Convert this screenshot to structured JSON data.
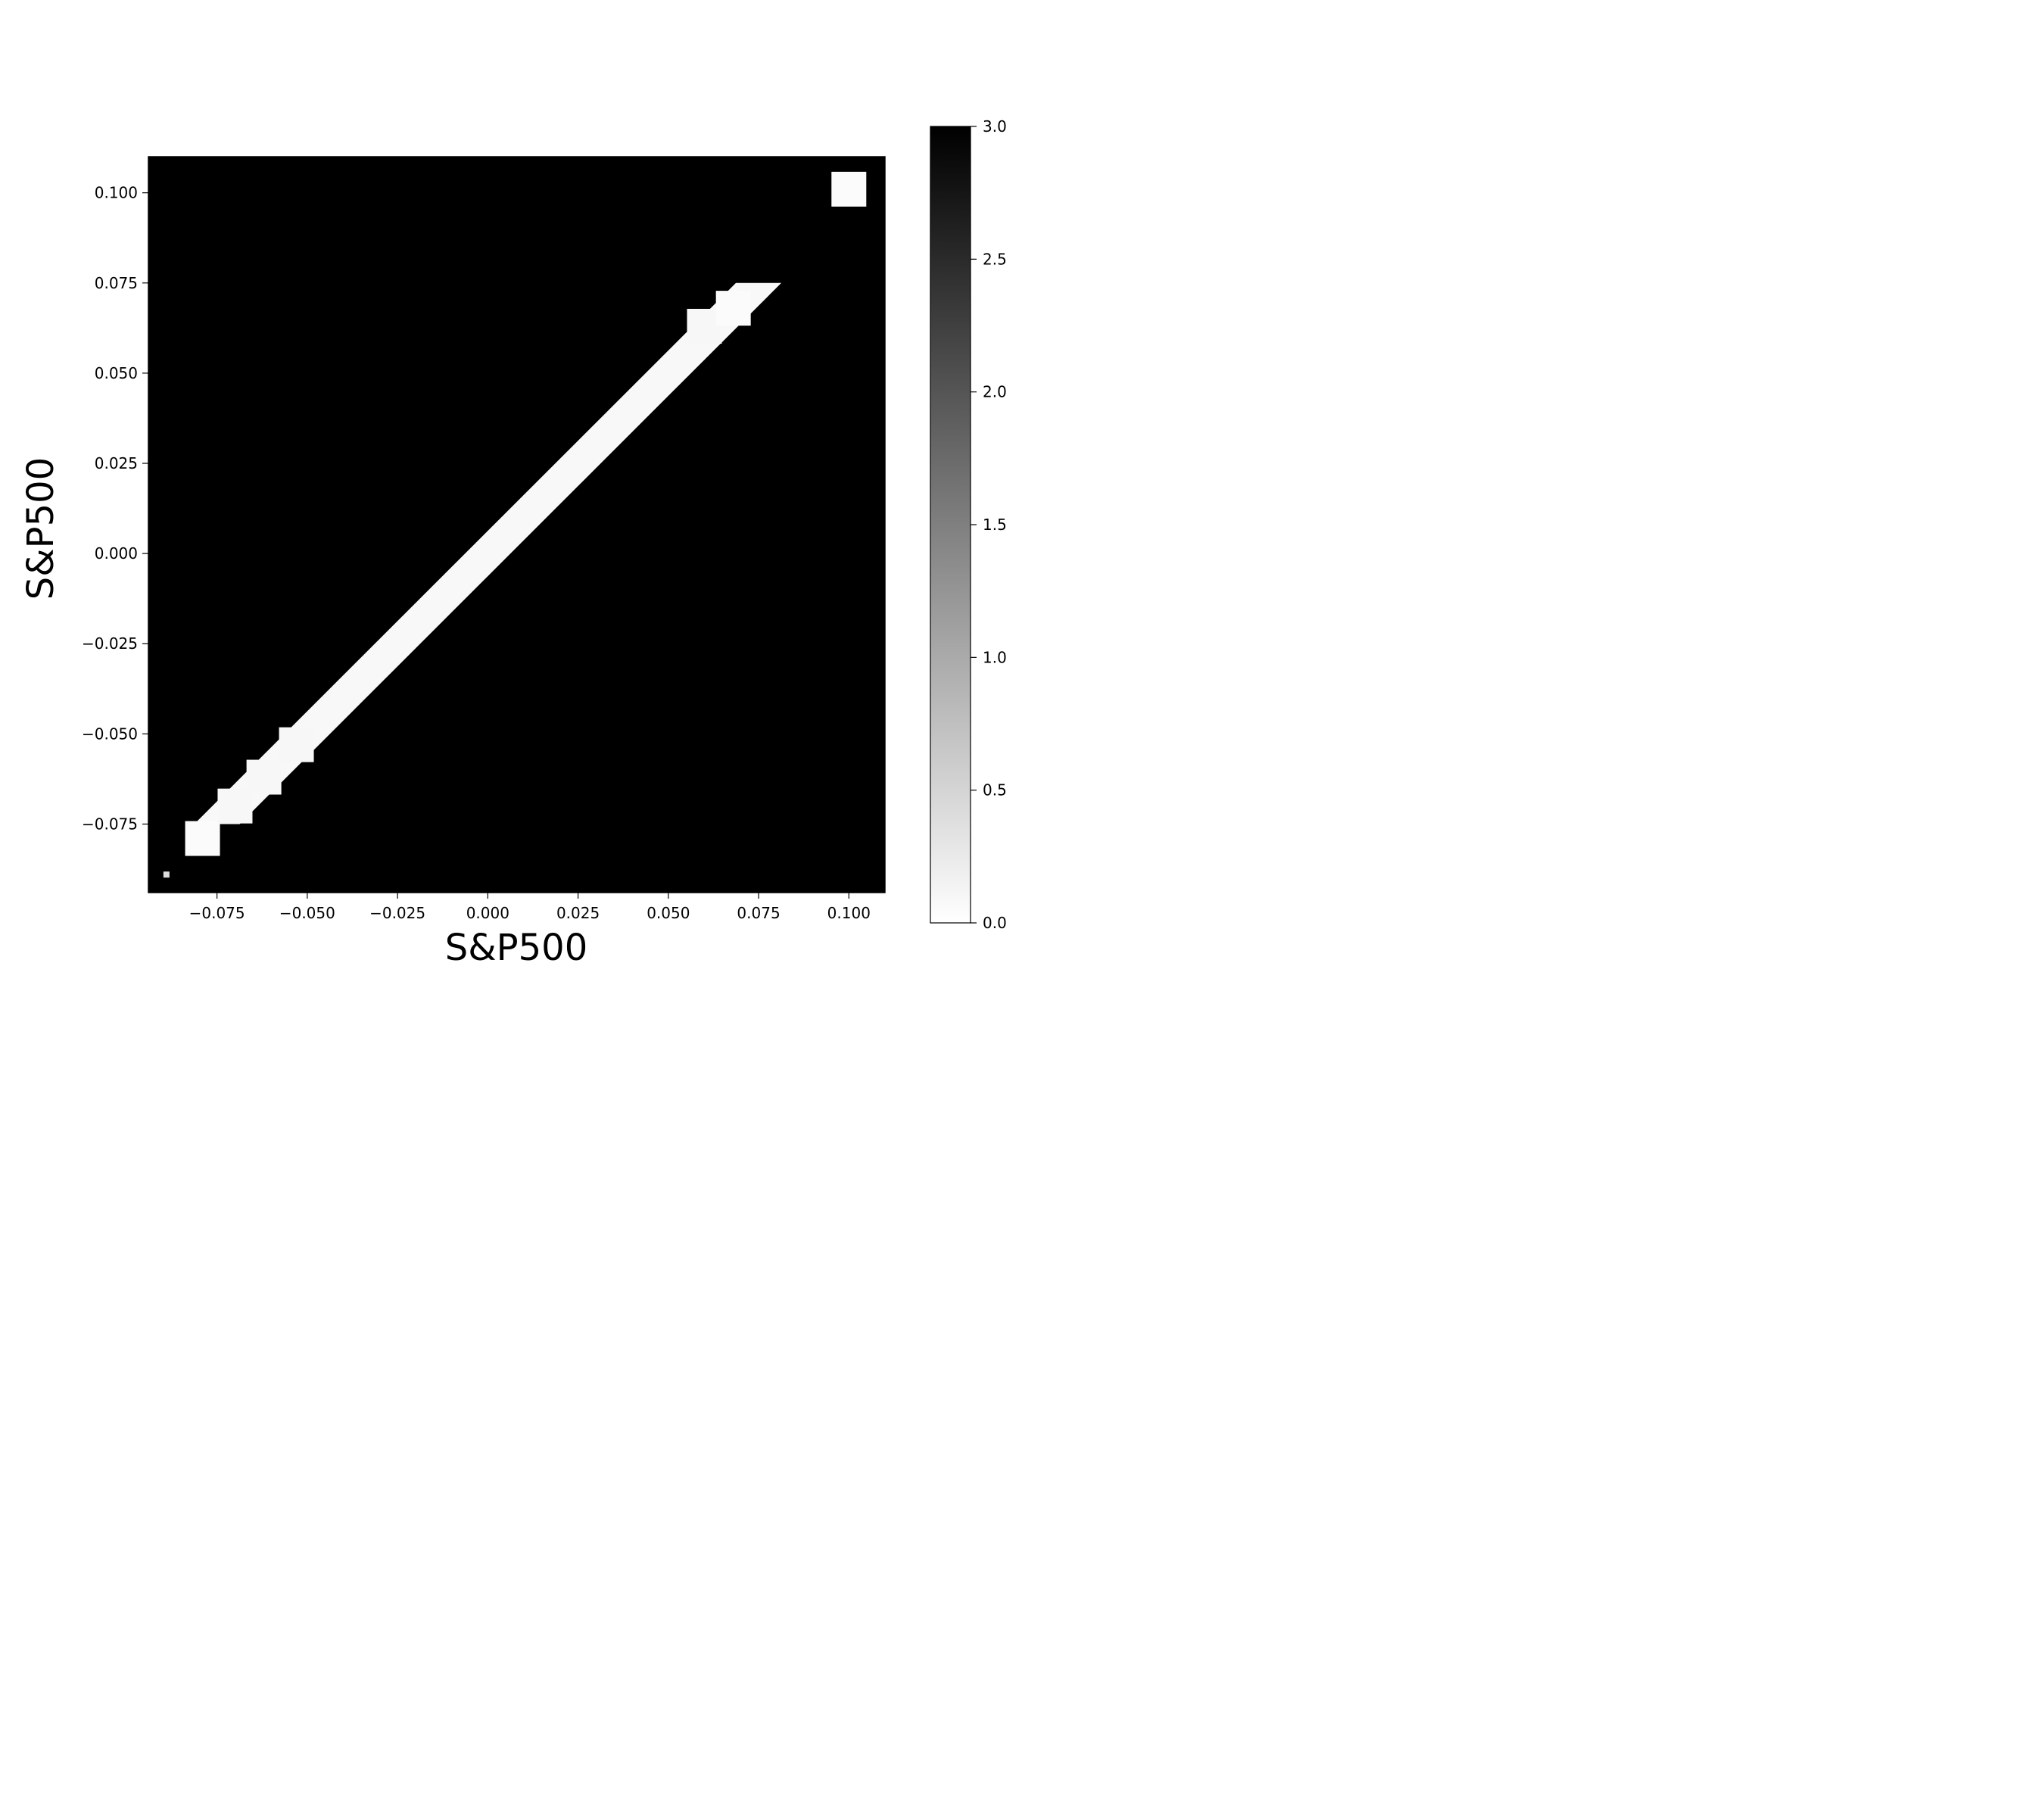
{
  "chart_data": {
    "type": "heatmap",
    "title": "",
    "xlabel": "S&P500",
    "ylabel": "S&P500",
    "xlim": [
      -0.094,
      0.11
    ],
    "ylim": [
      -0.094,
      0.11
    ],
    "x_ticks": [
      -0.075,
      -0.05,
      -0.025,
      0.0,
      0.025,
      0.05,
      0.075,
      0.1
    ],
    "x_tick_labels": [
      "−0.075",
      "−0.050",
      "−0.025",
      "0.000",
      "0.025",
      "0.050",
      "0.075",
      "0.100"
    ],
    "y_ticks": [
      -0.075,
      -0.05,
      -0.025,
      0.0,
      0.025,
      0.05,
      0.075,
      0.1
    ],
    "y_tick_labels": [
      "−0.075",
      "−0.050",
      "−0.025",
      "0.000",
      "0.025",
      "0.050",
      "0.075",
      "0.100"
    ],
    "colormap": "gray_r",
    "background_value": 3.0,
    "band": {
      "from": [
        -0.075,
        -0.075
      ],
      "to": [
        0.075,
        0.075
      ],
      "value": 0.08
    },
    "blobs": [
      {
        "x": -0.079,
        "y": -0.079,
        "value": 0.05
      },
      {
        "x": -0.07,
        "y": -0.07,
        "value": 0.1
      },
      {
        "x": -0.062,
        "y": -0.062,
        "value": 0.1
      },
      {
        "x": -0.053,
        "y": -0.053,
        "value": 0.1
      },
      {
        "x": 0.06,
        "y": 0.063,
        "value": 0.1
      },
      {
        "x": 0.068,
        "y": 0.068,
        "value": 0.05
      },
      {
        "x": 0.1,
        "y": 0.101,
        "value": 0.05
      },
      {
        "x": -0.089,
        "y": -0.089,
        "value": 0.4
      }
    ],
    "colorbar": {
      "min": 0.0,
      "max": 3.0,
      "ticks": [
        0.0,
        0.5,
        1.0,
        1.5,
        2.0,
        2.5,
        3.0
      ],
      "tick_labels": [
        "0.0",
        "0.5",
        "1.0",
        "1.5",
        "2.0",
        "2.5",
        "3.0"
      ]
    },
    "grid": false
  }
}
